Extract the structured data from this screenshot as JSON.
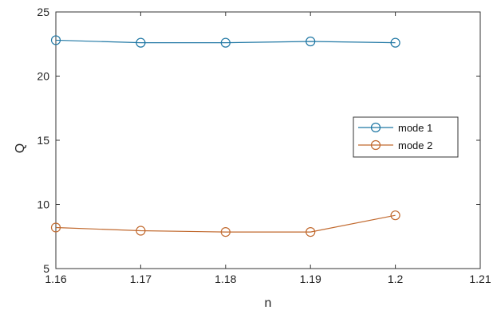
{
  "chart_data": {
    "type": "line",
    "xlabel": "n",
    "ylabel": "Q",
    "xlim": [
      1.16,
      1.21
    ],
    "ylim": [
      5,
      25
    ],
    "xticks": [
      "1.16",
      "1.17",
      "1.18",
      "1.19",
      "1.2",
      "1.21"
    ],
    "yticks": [
      "5",
      "10",
      "15",
      "20",
      "25"
    ],
    "grid": false,
    "legend_position": "right",
    "x": [
      1.16,
      1.17,
      1.18,
      1.19,
      1.2
    ],
    "series": [
      {
        "name": "mode 1",
        "color": "#1f77a4",
        "marker": "circle",
        "values": [
          22.8,
          22.6,
          22.6,
          22.7,
          22.6
        ]
      },
      {
        "name": "mode 2",
        "color": "#c1692e",
        "marker": "circle",
        "values": [
          8.2,
          7.95,
          7.85,
          7.85,
          9.15
        ]
      }
    ]
  }
}
